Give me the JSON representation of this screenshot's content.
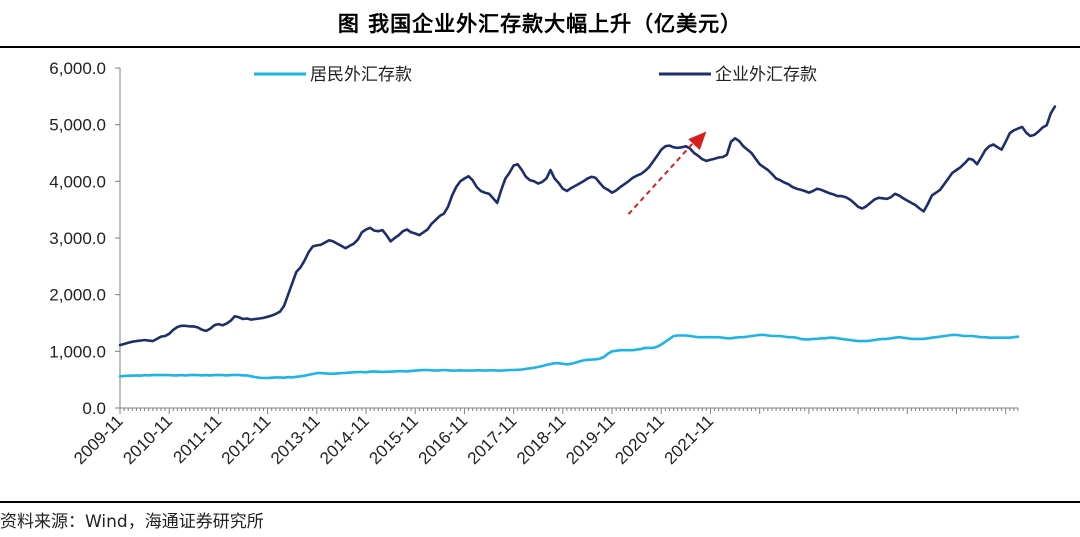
{
  "header": {
    "title": "图  我国企业外汇存款大幅上升（亿美元）"
  },
  "footer": {
    "source": "资料来源：Wind，海通证券研究所"
  },
  "colors": {
    "resident": "#1EB4E6",
    "corporate": "#1F2D6B",
    "arrow": "#D91E1E",
    "axis": "#7f7f7f"
  },
  "chart_data": {
    "type": "line",
    "title": "图  我国企业外汇存款大幅上升（亿美元）",
    "xlabel": "",
    "ylabel": "",
    "ylim": [
      0,
      6000
    ],
    "y_ticks": [
      "0.0",
      "1,000.0",
      "2,000.0",
      "3,000.0",
      "4,000.0",
      "5,000.0",
      "6,000.0"
    ],
    "x_ticks": [
      "2009-11",
      "2010-11",
      "2011-11",
      "2012-11",
      "2013-11",
      "2014-11",
      "2015-11",
      "2016-11",
      "2017-11",
      "2018-11",
      "2019-11",
      "2020-11",
      "2021-11"
    ],
    "x_start": "2009-11",
    "legend_position": "top",
    "annotation": "red dashed arrow pointing up-right, from 2020-03 to 2021-10",
    "series": [
      {
        "name": "居民外汇存款",
        "values": [
          560,
          565,
          570,
          570,
          575,
          570,
          580,
          575,
          580,
          585,
          580,
          580,
          580,
          575,
          575,
          580,
          575,
          580,
          585,
          580,
          575,
          580,
          575,
          580,
          585,
          580,
          575,
          580,
          585,
          585,
          575,
          575,
          560,
          545,
          535,
          530,
          530,
          535,
          540,
          540,
          535,
          545,
          540,
          550,
          560,
          570,
          585,
          600,
          615,
          615,
          610,
          605,
          605,
          610,
          615,
          620,
          625,
          630,
          635,
          635,
          630,
          640,
          645,
          640,
          635,
          640,
          640,
          645,
          650,
          650,
          645,
          655,
          660,
          665,
          670,
          670,
          665,
          660,
          665,
          670,
          665,
          660,
          660,
          665,
          660,
          660,
          660,
          665,
          665,
          660,
          665,
          665,
          660,
          660,
          665,
          670,
          670,
          675,
          680,
          690,
          700,
          710,
          725,
          740,
          760,
          775,
          790,
          790,
          780,
          770,
          780,
          800,
          820,
          840,
          850,
          855,
          860,
          870,
          900,
          960,
          1000,
          1010,
          1020,
          1020,
          1020,
          1020,
          1030,
          1040,
          1060,
          1060,
          1060,
          1080,
          1120,
          1170,
          1220,
          1270,
          1280,
          1280,
          1280,
          1270,
          1260,
          1250,
          1250,
          1250,
          1250,
          1250,
          1250,
          1240,
          1230,
          1230,
          1240,
          1250,
          1250,
          1260,
          1270,
          1280,
          1290,
          1290,
          1280,
          1270,
          1270,
          1270,
          1260,
          1250,
          1250,
          1240,
          1220,
          1210,
          1210,
          1220,
          1220,
          1230,
          1230,
          1240,
          1240,
          1230,
          1220,
          1210,
          1200,
          1190,
          1180,
          1180,
          1180,
          1190,
          1200,
          1210,
          1220,
          1220,
          1230,
          1240,
          1250,
          1240,
          1230,
          1220,
          1220,
          1220,
          1220,
          1230,
          1240,
          1250,
          1260,
          1270,
          1280,
          1290,
          1290,
          1280,
          1270,
          1270,
          1270,
          1260,
          1250,
          1250,
          1240,
          1240,
          1240,
          1240,
          1240,
          1240,
          1250,
          1260
        ]
      },
      {
        "name": "企业外汇存款",
        "values": [
          1110,
          1130,
          1150,
          1170,
          1180,
          1190,
          1200,
          1190,
          1180,
          1220,
          1260,
          1270,
          1310,
          1380,
          1430,
          1450,
          1450,
          1440,
          1440,
          1420,
          1380,
          1360,
          1400,
          1460,
          1480,
          1460,
          1490,
          1540,
          1620,
          1600,
          1570,
          1580,
          1560,
          1570,
          1580,
          1590,
          1610,
          1630,
          1660,
          1700,
          1800,
          2000,
          2200,
          2400,
          2480,
          2600,
          2750,
          2850,
          2870,
          2880,
          2920,
          2960,
          2940,
          2900,
          2860,
          2820,
          2860,
          2900,
          2970,
          3100,
          3150,
          3180,
          3130,
          3120,
          3140,
          3050,
          2940,
          3000,
          3050,
          3120,
          3150,
          3100,
          3080,
          3050,
          3100,
          3150,
          3250,
          3320,
          3390,
          3430,
          3550,
          3750,
          3900,
          4000,
          4050,
          4090,
          4020,
          3900,
          3830,
          3800,
          3780,
          3700,
          3620,
          3850,
          4050,
          4150,
          4280,
          4300,
          4200,
          4080,
          4020,
          4000,
          3960,
          3990,
          4050,
          4200,
          4050,
          3970,
          3870,
          3830,
          3880,
          3920,
          3960,
          4000,
          4050,
          4080,
          4060,
          3970,
          3890,
          3850,
          3800,
          3840,
          3900,
          3950,
          4000,
          4060,
          4100,
          4130,
          4180,
          4250,
          4350,
          4450,
          4560,
          4620,
          4630,
          4600,
          4590,
          4600,
          4620,
          4580,
          4500,
          4450,
          4390,
          4360,
          4380,
          4400,
          4420,
          4430,
          4470,
          4700,
          4760,
          4710,
          4620,
          4560,
          4500,
          4400,
          4300,
          4250,
          4200,
          4130,
          4050,
          4020,
          3980,
          3950,
          3900,
          3870,
          3850,
          3830,
          3800,
          3830,
          3870,
          3850,
          3820,
          3790,
          3770,
          3740,
          3740,
          3720,
          3680,
          3620,
          3550,
          3520,
          3560,
          3620,
          3680,
          3710,
          3700,
          3690,
          3720,
          3780,
          3750,
          3700,
          3660,
          3620,
          3580,
          3520,
          3470,
          3600,
          3750,
          3800,
          3850,
          3950,
          4050,
          4150,
          4200,
          4250,
          4320,
          4400,
          4380,
          4300,
          4420,
          4550,
          4620,
          4650,
          4600,
          4560,
          4700,
          4850,
          4900,
          4930,
          4960,
          4860,
          4800,
          4820,
          4880,
          4950,
          4990,
          5200,
          5320
        ]
      }
    ]
  }
}
